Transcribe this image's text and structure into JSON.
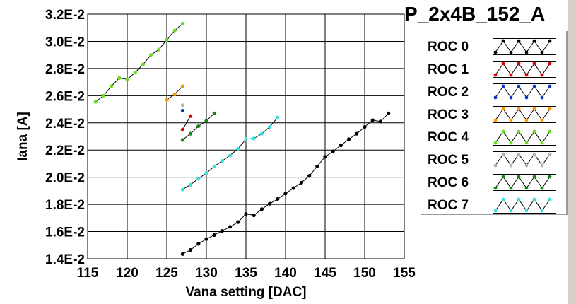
{
  "chart_data": {
    "type": "line",
    "title": "P_2x4B_152_A",
    "xlabel": "Vana setting [DAC]",
    "ylabel": "Iana [A]",
    "xlim": [
      115,
      155
    ],
    "ylim": [
      0.014,
      0.032
    ],
    "x_ticks": [
      115,
      120,
      125,
      130,
      135,
      140,
      145,
      150,
      155
    ],
    "x_tick_labels": [
      "115",
      "120",
      "125",
      "130",
      "135",
      "140",
      "145",
      "150",
      "155"
    ],
    "y_ticks": [
      0.014,
      0.016,
      0.018,
      0.02,
      0.022,
      0.024,
      0.026,
      0.028,
      0.03,
      0.032
    ],
    "y_tick_labels": [
      "1.4E-2",
      "1.6E-2",
      "1.8E-2",
      "2.0E-2",
      "2.2E-2",
      "2.4E-2",
      "2.6E-2",
      "2.8E-2",
      "3.0E-2",
      "3.2E-2"
    ],
    "grid": true,
    "legend_position": "right",
    "series": [
      {
        "name": "ROC 0",
        "color": "#000000",
        "x": [
          127,
          128,
          129,
          130,
          131,
          132,
          133,
          134,
          135,
          136,
          137,
          138,
          139,
          140,
          141,
          142,
          143,
          144,
          145,
          146,
          147,
          148,
          149,
          150,
          151,
          152,
          153
        ],
        "y": [
          0.01435,
          0.01465,
          0.0151,
          0.01545,
          0.01575,
          0.01605,
          0.01635,
          0.0167,
          0.0173,
          0.0172,
          0.01765,
          0.01805,
          0.0184,
          0.0188,
          0.0192,
          0.0196,
          0.0201,
          0.0208,
          0.0215,
          0.0219,
          0.02235,
          0.0228,
          0.0232,
          0.0237,
          0.0242,
          0.0241,
          0.0247
        ]
      },
      {
        "name": "ROC 1",
        "color": "#e00000",
        "x": [
          127,
          128
        ],
        "y": [
          0.0235,
          0.0245
        ]
      },
      {
        "name": "ROC 2",
        "color": "#1030c0",
        "x": [
          127
        ],
        "y": [
          0.0249
        ]
      },
      {
        "name": "ROC 3",
        "color": "#ff9900",
        "x": [
          125,
          126,
          127
        ],
        "y": [
          0.0257,
          0.0261,
          0.0267
        ]
      },
      {
        "name": "ROC 4",
        "color": "#66dd22",
        "x": [
          116,
          117,
          118,
          119,
          120,
          121,
          122,
          123,
          124,
          125,
          126,
          127
        ],
        "y": [
          0.02555,
          0.026,
          0.0267,
          0.0273,
          0.0272,
          0.0277,
          0.0283,
          0.029,
          0.0294,
          0.0301,
          0.0308,
          0.0313
        ]
      },
      {
        "name": "ROC 5",
        "color": "#b4b4b4",
        "x": [
          127
        ],
        "y": [
          0.0253
        ]
      },
      {
        "name": "ROC 6",
        "color": "#118811",
        "x": [
          127,
          128,
          129,
          130,
          131
        ],
        "y": [
          0.02275,
          0.0232,
          0.02375,
          0.02415,
          0.0247
        ]
      },
      {
        "name": "ROC 7",
        "color": "#33e0e0",
        "x": [
          127,
          128,
          129,
          130,
          131,
          132,
          133,
          134,
          135,
          136,
          137,
          138,
          139
        ],
        "y": [
          0.0191,
          0.01945,
          0.0199,
          0.0203,
          0.0208,
          0.0212,
          0.0216,
          0.0221,
          0.0228,
          0.02285,
          0.0232,
          0.0237,
          0.0244
        ]
      }
    ]
  }
}
